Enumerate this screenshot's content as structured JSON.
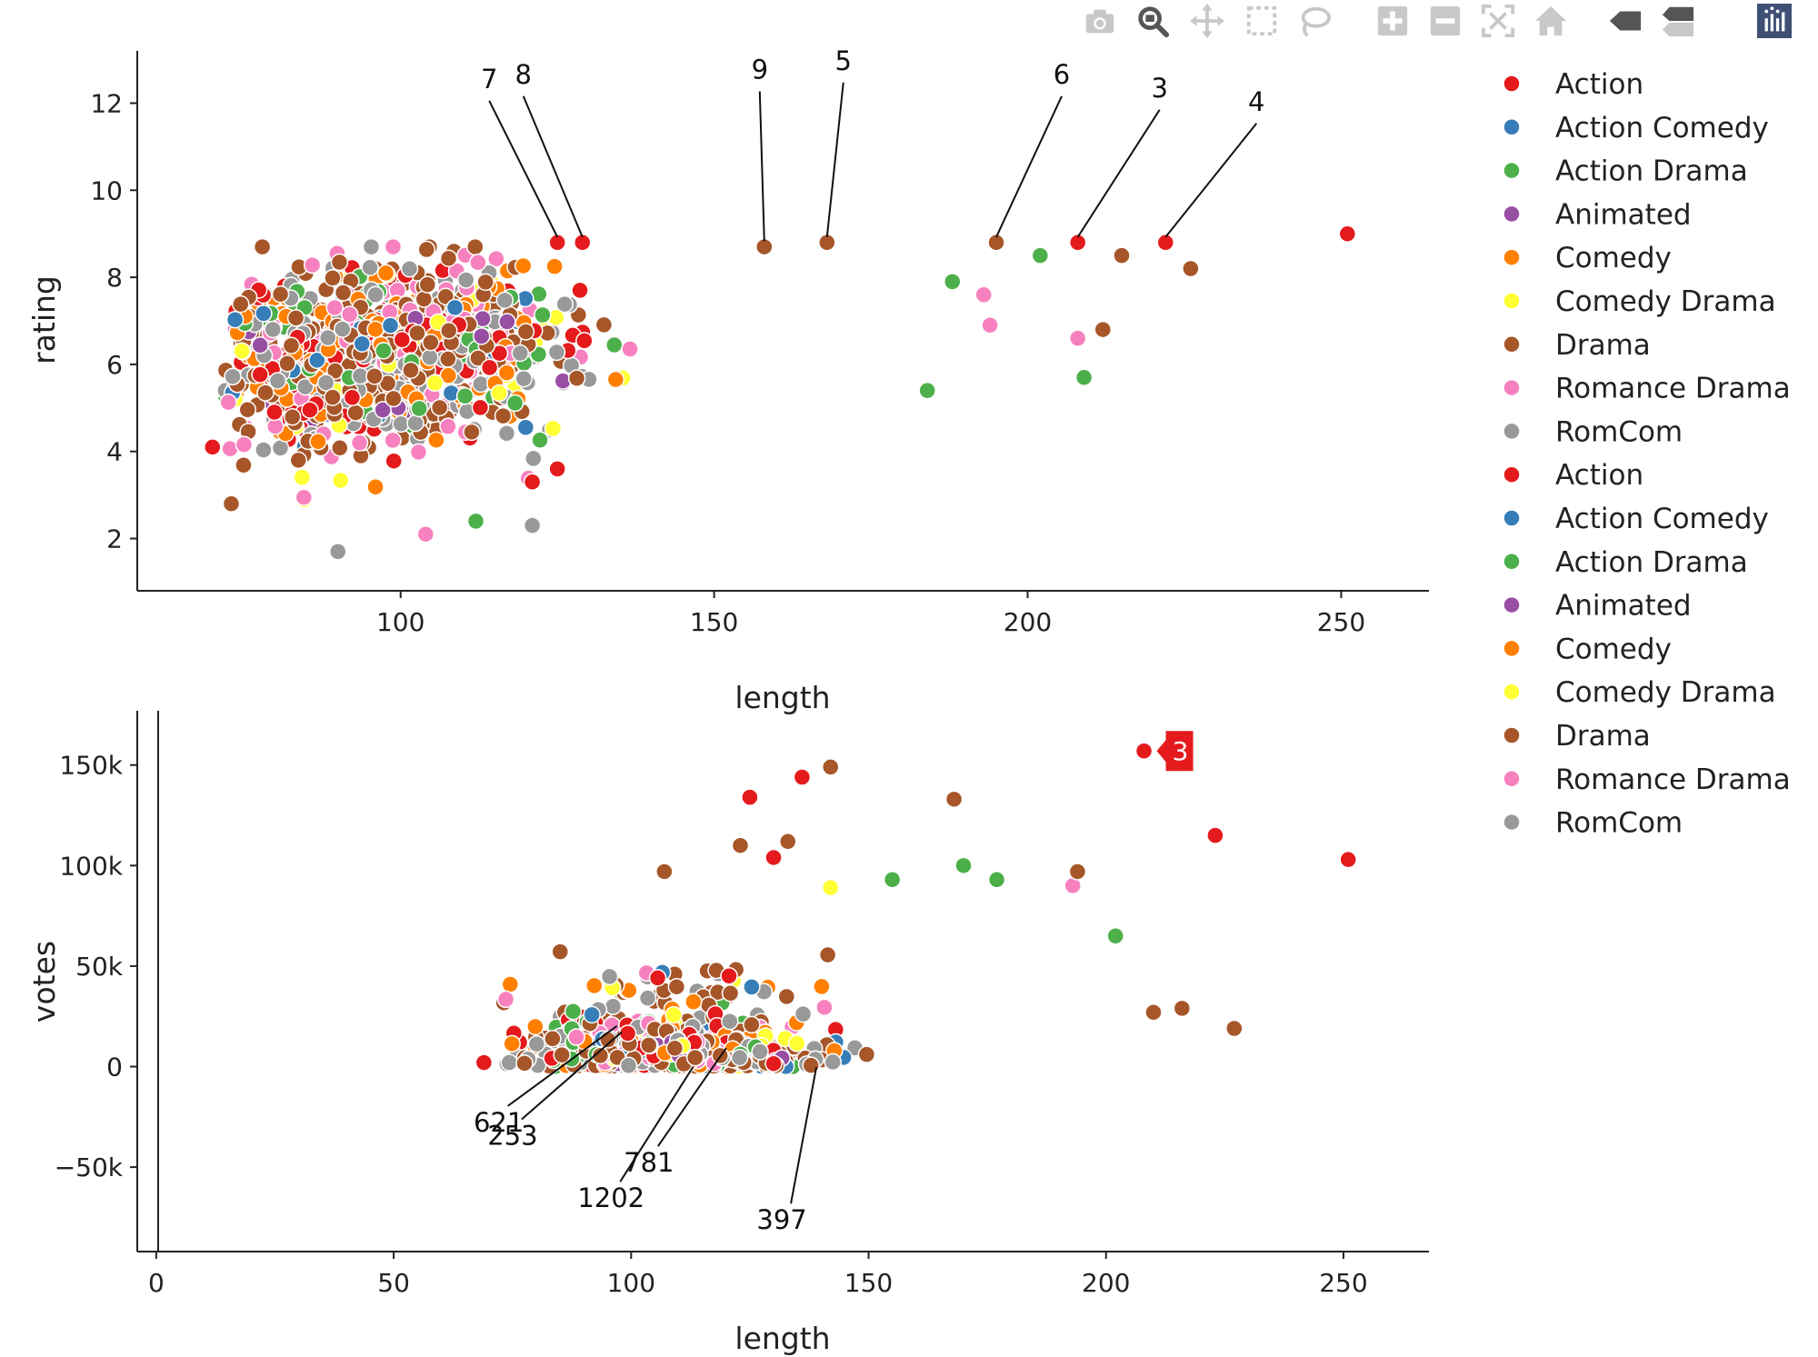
{
  "toolbar": {
    "buttons": [
      {
        "name": "camera-icon",
        "label": "Download plot as a png",
        "icon": "camera-icon",
        "active": false
      },
      {
        "name": "zoom-icon",
        "label": "Zoom",
        "icon": "magnifier-icon",
        "active": true
      },
      {
        "name": "pan-icon",
        "label": "Pan",
        "icon": "move-icon",
        "active": false
      },
      {
        "name": "box-select-icon",
        "label": "Box Select",
        "icon": "dashed-box-icon",
        "active": false
      },
      {
        "name": "lasso-select-icon",
        "label": "Lasso Select",
        "icon": "lasso-icon",
        "active": false
      },
      {
        "name": "zoom-in-icon",
        "label": "Zoom in",
        "icon": "plus-square-icon",
        "active": false
      },
      {
        "name": "zoom-out-icon",
        "label": "Zoom out",
        "icon": "minus-square-icon",
        "active": false
      },
      {
        "name": "autoscale-icon",
        "label": "Autoscale",
        "icon": "autoscale-icon",
        "active": false
      },
      {
        "name": "reset-axes-icon",
        "label": "Reset axes",
        "icon": "home-icon",
        "active": false
      },
      {
        "name": "spike-lines-icon",
        "label": "Toggle Spike Lines",
        "icon": "spike-icon",
        "active": false
      },
      {
        "name": "compare-hover-icon",
        "label": "Compare data on hover",
        "icon": "compare-icon",
        "active": false
      },
      {
        "name": "plotly-logo-icon",
        "label": "Produced with Plotly",
        "icon": "plotly-logo",
        "active": false
      }
    ],
    "icon_color": "#c8c8c8",
    "active_color": "#555555",
    "logo_color": "#3f4f75"
  },
  "colors": {
    "Action": "#e41a1c",
    "Action Comedy": "#377eb8",
    "Action Drama": "#4daf4a",
    "Animated": "#984ea3",
    "Comedy": "#ff7f00",
    "Comedy Drama": "#ffff33",
    "Drama": "#a65628",
    "Romance Drama": "#f781bf",
    "RomCom": "#999999"
  },
  "legend": {
    "placement": "right",
    "entries": [
      "Action",
      "Action Comedy",
      "Action Drama",
      "Animated",
      "Comedy",
      "Comedy Drama",
      "Drama",
      "Romance Drama",
      "RomCom",
      "Action",
      "Action Comedy",
      "Action Drama",
      "Animated",
      "Comedy",
      "Comedy Drama",
      "Drama",
      "Romance Drama",
      "RomCom"
    ]
  },
  "chart_data": [
    {
      "type": "scatter",
      "xlabel": "length",
      "ylabel": "rating",
      "xlim": [
        58,
        264
      ],
      "ylim": [
        0.8,
        13.2
      ],
      "xticks": [
        100,
        150,
        200,
        250
      ],
      "xtick_labels": [
        "100",
        "150",
        "200",
        "250"
      ],
      "yticks": [
        2,
        4,
        6,
        8,
        10,
        12
      ],
      "ytick_labels": [
        "2",
        "4",
        "6",
        "8",
        "10",
        "12"
      ],
      "grid": false,
      "series_note": "series = genre categories (see legend)",
      "highlighted_points": [
        {
          "genre": "Action",
          "x": 251,
          "y": 9.0
        },
        {
          "genre": "Action",
          "x": 222,
          "y": 8.8
        },
        {
          "genre": "Action",
          "x": 208,
          "y": 8.8
        },
        {
          "genre": "Drama",
          "x": 195,
          "y": 8.8
        },
        {
          "genre": "Drama",
          "x": 168,
          "y": 8.8
        },
        {
          "genre": "Drama",
          "x": 158,
          "y": 8.7
        },
        {
          "genre": "Action",
          "x": 129,
          "y": 8.8
        },
        {
          "genre": "Action",
          "x": 125,
          "y": 8.8
        },
        {
          "genre": "Action",
          "x": 70,
          "y": 4.1
        },
        {
          "genre": "Drama",
          "x": 73,
          "y": 2.8
        },
        {
          "genre": "RomCom",
          "x": 90,
          "y": 1.7
        },
        {
          "genre": "Action",
          "x": 121,
          "y": 3.3
        },
        {
          "genre": "Action",
          "x": 125,
          "y": 3.6
        },
        {
          "genre": "RomCom",
          "x": 121,
          "y": 2.3
        },
        {
          "genre": "Action Drama",
          "x": 112,
          "y": 2.4
        },
        {
          "genre": "Romance Drama",
          "x": 104,
          "y": 2.1
        },
        {
          "genre": "Action Drama",
          "x": 209,
          "y": 5.7
        },
        {
          "genre": "Action Drama",
          "x": 184,
          "y": 5.4
        },
        {
          "genre": "Drama",
          "x": 226,
          "y": 8.2
        },
        {
          "genre": "Drama",
          "x": 215,
          "y": 8.5
        },
        {
          "genre": "Drama",
          "x": 212,
          "y": 6.8
        },
        {
          "genre": "Romance Drama",
          "x": 208,
          "y": 6.6
        },
        {
          "genre": "Action Drama",
          "x": 202,
          "y": 8.5
        },
        {
          "genre": "Romance Drama",
          "x": 194,
          "y": 6.9
        },
        {
          "genre": "Romance Drama",
          "x": 193,
          "y": 7.6
        },
        {
          "genre": "Action Drama",
          "x": 188,
          "y": 7.9
        }
      ],
      "annotations": [
        {
          "text": "7",
          "x": 125,
          "y": 8.8
        },
        {
          "text": "8",
          "x": 129,
          "y": 8.8
        },
        {
          "text": "9",
          "x": 158,
          "y": 8.7
        },
        {
          "text": "5",
          "x": 168,
          "y": 8.8
        },
        {
          "text": "6",
          "x": 195,
          "y": 8.8
        },
        {
          "text": "3",
          "x": 208,
          "y": 8.8
        },
        {
          "text": "4",
          "x": 222,
          "y": 8.8
        }
      ]
    },
    {
      "type": "scatter",
      "xlabel": "length",
      "ylabel": "votes",
      "xlim": [
        -4,
        268
      ],
      "ylim": [
        -92000,
        177000
      ],
      "xticks": [
        0,
        50,
        100,
        150,
        200,
        250
      ],
      "xtick_labels": [
        "0",
        "50",
        "100",
        "150",
        "200",
        "250"
      ],
      "yticks": [
        -50000,
        0,
        50000,
        100000,
        150000
      ],
      "ytick_labels": [
        "−50k",
        "0",
        "50k",
        "100k",
        "150k"
      ],
      "grid": false,
      "highlighted_points": [
        {
          "genre": "Action",
          "x": 208,
          "y": 157000
        },
        {
          "genre": "Action",
          "x": 223,
          "y": 115000
        },
        {
          "genre": "Action",
          "x": 251,
          "y": 103000
        },
        {
          "genre": "Drama",
          "x": 142,
          "y": 149000
        },
        {
          "genre": "Action",
          "x": 136,
          "y": 144000
        },
        {
          "genre": "Action",
          "x": 125,
          "y": 134000
        },
        {
          "genre": "Drama",
          "x": 168,
          "y": 133000
        },
        {
          "genre": "Drama",
          "x": 123,
          "y": 110000
        },
        {
          "genre": "Drama",
          "x": 133,
          "y": 112000
        },
        {
          "genre": "Action",
          "x": 130,
          "y": 104000
        },
        {
          "genre": "Action Drama",
          "x": 170,
          "y": 100000
        },
        {
          "genre": "Action Drama",
          "x": 177,
          "y": 93000
        },
        {
          "genre": "Action Drama",
          "x": 155,
          "y": 93000
        },
        {
          "genre": "Romance Drama",
          "x": 193,
          "y": 90000
        },
        {
          "genre": "Drama",
          "x": 194,
          "y": 97000
        },
        {
          "genre": "Drama",
          "x": 107,
          "y": 97000
        },
        {
          "genre": "Comedy Drama",
          "x": 142,
          "y": 89000
        },
        {
          "genre": "Action Drama",
          "x": 202,
          "y": 65000
        },
        {
          "genre": "Action",
          "x": 69,
          "y": 2000
        },
        {
          "genre": "Drama",
          "x": 227,
          "y": 19000
        },
        {
          "genre": "Drama",
          "x": 216,
          "y": 29000
        },
        {
          "genre": "Drama",
          "x": 210,
          "y": 27000
        }
      ],
      "annotations": [
        {
          "text": "621",
          "x": 97,
          "y": 22000
        },
        {
          "text": "253",
          "x": 98,
          "y": 19000
        },
        {
          "text": "781",
          "x": 120,
          "y": 11000
        },
        {
          "text": "1202",
          "x": 113,
          "y": 1500
        },
        {
          "text": "397",
          "x": 139,
          "y": 1500
        }
      ],
      "hover_label": {
        "text": "3",
        "x": 208,
        "y": 157000,
        "color": "#e41a1c"
      }
    }
  ]
}
